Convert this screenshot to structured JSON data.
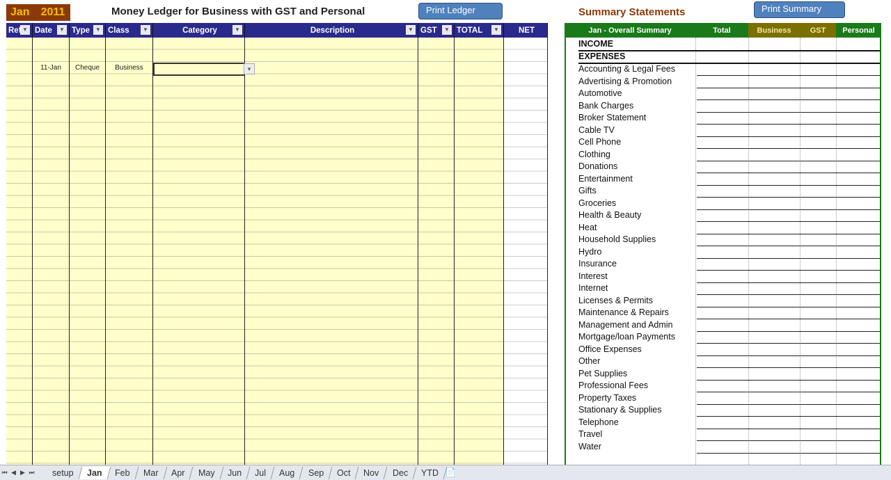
{
  "ledger": {
    "month": "Jan",
    "year": "2011",
    "title": "Money Ledger for Business with GST and Personal",
    "print_button": "Print Ledger",
    "columns": [
      {
        "label": "Ref"
      },
      {
        "label": "Date"
      },
      {
        "label": "Type"
      },
      {
        "label": "Class"
      },
      {
        "label": "Category"
      },
      {
        "label": "Description"
      },
      {
        "label": "GST"
      },
      {
        "label": "TOTAL"
      },
      {
        "label": "NET"
      }
    ],
    "row": {
      "date": "11-Jan",
      "type": "Cheque",
      "class": "Business",
      "category": ""
    }
  },
  "summary": {
    "title": "Summary Statements",
    "print_button": "Print Summary",
    "columns": [
      "Jan - Overall Summary",
      "Total",
      "Business",
      "GST",
      "Personal"
    ],
    "income": "INCOME",
    "expenses": "EXPENSES",
    "items": [
      "Accounting & Legal Fees",
      "Advertising & Promotion",
      "Automotive",
      "Bank Charges",
      "Broker Statement",
      "Cable TV",
      "Cell Phone",
      "Clothing",
      "Donations",
      "Entertainment",
      "Gifts",
      "Groceries",
      "Health & Beauty",
      "Heat",
      "Household Supplies",
      "Hydro",
      "Insurance",
      "Interest",
      "Internet",
      "Licenses & Permits",
      "Maintenance & Repairs",
      "Management and Admin",
      "Mortgage/loan Payments",
      "Office Expenses",
      "Other",
      "Pet Supplies",
      "Professional Fees",
      "Property Taxes",
      "Stationary & Supplies",
      "Telephone",
      "Travel",
      "Water"
    ],
    "colors": {
      "green": "#1a7a1a",
      "olive": "#7a7000"
    }
  },
  "tabs": [
    "setup",
    "Jan",
    "Feb",
    "Mar",
    "Apr",
    "May",
    "Jun",
    "Jul",
    "Aug",
    "Sep",
    "Oct",
    "Nov",
    "Dec",
    "YTD"
  ],
  "active_tab": "Jan"
}
